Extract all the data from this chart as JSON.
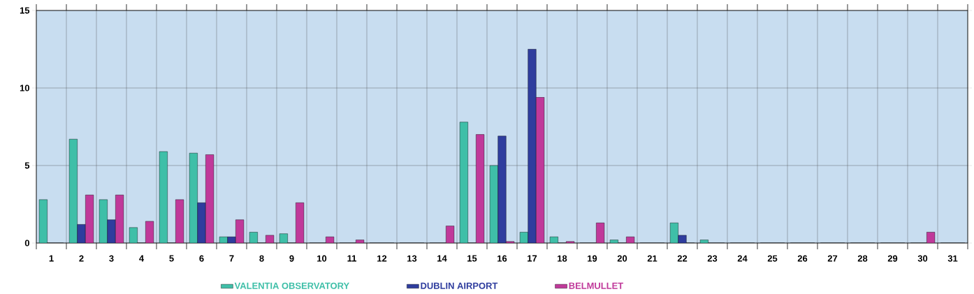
{
  "chart_data": {
    "type": "bar",
    "categories": [
      "1",
      "2",
      "3",
      "4",
      "5",
      "6",
      "7",
      "8",
      "9",
      "10",
      "11",
      "12",
      "13",
      "14",
      "15",
      "16",
      "17",
      "18",
      "19",
      "20",
      "21",
      "22",
      "23",
      "24",
      "25",
      "26",
      "27",
      "28",
      "29",
      "30",
      "31"
    ],
    "series": [
      {
        "name": "VALENTIA OBSERVATORY",
        "color": "#3fbfa8",
        "values": [
          2.8,
          6.7,
          2.8,
          1.0,
          5.9,
          5.8,
          0.4,
          0.7,
          0.6,
          0,
          0,
          0,
          0,
          0,
          7.8,
          5.0,
          0.7,
          0.4,
          0,
          0.2,
          0,
          1.3,
          0.2,
          0,
          0,
          0,
          0,
          0,
          0,
          0,
          0
        ]
      },
      {
        "name": "DUBLIN AIRPORT",
        "color": "#2f3d9e",
        "values": [
          0,
          1.2,
          1.5,
          0,
          0,
          2.6,
          0.4,
          0,
          0,
          0,
          0,
          0,
          0,
          0,
          0,
          6.9,
          12.5,
          0,
          0,
          0,
          0,
          0.5,
          0,
          0,
          0,
          0,
          0,
          0,
          0,
          0,
          0
        ]
      },
      {
        "name": "BELMULLET",
        "color": "#c0399a",
        "values": [
          0,
          3.1,
          3.1,
          1.4,
          2.8,
          5.7,
          1.5,
          0.5,
          2.6,
          0.4,
          0.2,
          0,
          0,
          1.1,
          7.0,
          0.1,
          9.4,
          0.1,
          1.3,
          0.4,
          0,
          0,
          0,
          0,
          0,
          0,
          0,
          0,
          0,
          0.7,
          0
        ]
      }
    ],
    "ylim": [
      0,
      15
    ],
    "yticks": [
      0,
      5,
      10,
      15
    ],
    "grid": true,
    "legend": "bottom"
  }
}
